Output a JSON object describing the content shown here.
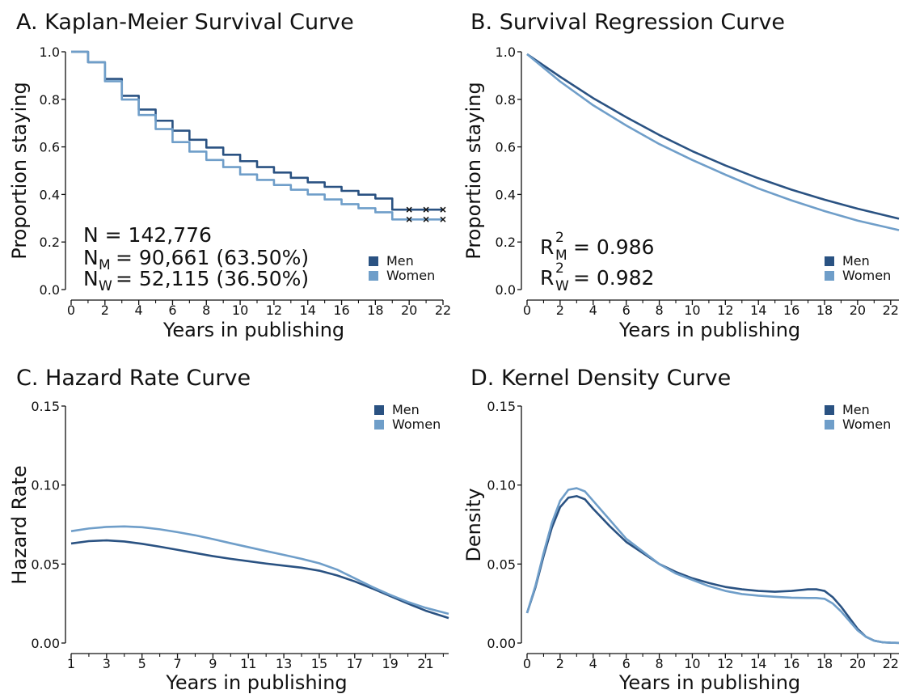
{
  "colors": {
    "men": "#2a5282",
    "women": "#6f9ec9",
    "axis": "#111111",
    "censor": "#111111"
  },
  "chart_data": [
    {
      "id": "A",
      "type": "line",
      "title": "A. Kaplan-Meier Survival Curve",
      "xlabel": "Years in publishing",
      "ylabel": "Proportion staying",
      "xlim": [
        0,
        22
      ],
      "ylim": [
        0,
        1
      ],
      "x_ticks": [
        "0",
        "2",
        "4",
        "6",
        "8",
        "10",
        "12",
        "14",
        "16",
        "18",
        "20",
        "22"
      ],
      "x_minor_ticks": [
        1,
        3,
        5,
        7,
        9,
        11,
        13,
        15,
        17,
        19,
        21
      ],
      "y_ticks": [
        "0.0",
        "0.2",
        "0.4",
        "0.6",
        "0.8",
        "1.0"
      ],
      "step": true,
      "legend": {
        "position": "bottom-right",
        "entries": [
          "Men",
          "Women"
        ]
      },
      "annotations": {
        "n_total": "N = 142,776",
        "n_men_sub": "M",
        "n_men": "= 90,661 (63.50%)",
        "n_women_sub": "W",
        "n_women": "= 52,115 (36.50%)"
      },
      "series": [
        {
          "name": "Men",
          "color_key": "men",
          "x": [
            0,
            1,
            2,
            3,
            4,
            5,
            6,
            7,
            8,
            9,
            10,
            11,
            12,
            13,
            14,
            15,
            16,
            17,
            18,
            19,
            20,
            21,
            22
          ],
          "values": [
            1.0,
            0.956,
            0.886,
            0.815,
            0.757,
            0.71,
            0.668,
            0.63,
            0.597,
            0.567,
            0.54,
            0.515,
            0.492,
            0.47,
            0.451,
            0.432,
            0.415,
            0.399,
            0.383,
            0.336,
            0.336,
            0.336,
            0.336
          ],
          "censored_x": [
            20,
            21,
            22
          ],
          "censored_y": 0.336
        },
        {
          "name": "Women",
          "color_key": "women",
          "x": [
            0,
            1,
            2,
            3,
            4,
            5,
            6,
            7,
            8,
            9,
            10,
            11,
            12,
            13,
            14,
            15,
            16,
            17,
            18,
            19,
            20,
            21,
            22
          ],
          "values": [
            1.0,
            0.956,
            0.876,
            0.799,
            0.734,
            0.675,
            0.62,
            0.58,
            0.545,
            0.515,
            0.484,
            0.461,
            0.44,
            0.42,
            0.4,
            0.379,
            0.359,
            0.342,
            0.325,
            0.295,
            0.295,
            0.295,
            0.295
          ],
          "censored_x": [
            20,
            21,
            22
          ],
          "censored_y": 0.295
        }
      ]
    },
    {
      "id": "B",
      "type": "line",
      "title": "B. Survival Regression Curve",
      "xlabel": "Years in publishing",
      "ylabel": "Proportion staying",
      "xlim": [
        0,
        22.5
      ],
      "ylim": [
        0,
        1
      ],
      "x_ticks": [
        "0",
        "2",
        "4",
        "6",
        "8",
        "10",
        "12",
        "14",
        "16",
        "18",
        "20",
        "22"
      ],
      "x_minor_ticks": [
        1,
        3,
        5,
        7,
        9,
        11,
        13,
        15,
        17,
        19,
        21
      ],
      "y_ticks": [
        "0.0",
        "0.2",
        "0.4",
        "0.6",
        "0.8",
        "1.0"
      ],
      "legend": {
        "position": "bottom-right",
        "entries": [
          "Men",
          "Women"
        ]
      },
      "annotations": {
        "r_men_sup": "2",
        "r_men_sub": "M",
        "r_men": "= 0.986",
        "r_women_sup": "2",
        "r_women_sub": "W",
        "r_women": "= 0.982"
      },
      "series": [
        {
          "name": "Men",
          "color_key": "men",
          "x": [
            0,
            2,
            4,
            6,
            8,
            10,
            12,
            14,
            16,
            18,
            20,
            22.5
          ],
          "values": [
            0.99,
            0.895,
            0.805,
            0.725,
            0.65,
            0.582,
            0.522,
            0.468,
            0.42,
            0.378,
            0.34,
            0.298
          ]
        },
        {
          "name": "Women",
          "color_key": "women",
          "x": [
            0,
            2,
            4,
            6,
            8,
            10,
            12,
            14,
            16,
            18,
            20,
            22.5
          ],
          "values": [
            0.99,
            0.875,
            0.775,
            0.69,
            0.612,
            0.545,
            0.483,
            0.425,
            0.375,
            0.33,
            0.29,
            0.25
          ]
        }
      ]
    },
    {
      "id": "C",
      "type": "line",
      "title": "C. Hazard Rate Curve",
      "xlabel": "Years in publishing",
      "ylabel": "Hazard Rate",
      "xlim": [
        1,
        22.3
      ],
      "ylim": [
        0,
        0.15
      ],
      "x_ticks": [
        "1",
        "3",
        "5",
        "7",
        "9",
        "11",
        "13",
        "15",
        "17",
        "19",
        "21"
      ],
      "x_minor_ticks": [
        2,
        4,
        6,
        8,
        10,
        12,
        14,
        16,
        18,
        20,
        22
      ],
      "y_ticks": [
        "0.00",
        "0.05",
        "0.10",
        "0.15"
      ],
      "legend": {
        "position": "top-right",
        "entries": [
          "Men",
          "Women"
        ]
      },
      "series": [
        {
          "name": "Men",
          "color_key": "men",
          "x": [
            1,
            2,
            3,
            4,
            5,
            6,
            7,
            8,
            9,
            10,
            11,
            12,
            13,
            14,
            15,
            16,
            17,
            18,
            19,
            20,
            21,
            22.3
          ],
          "values": [
            0.063,
            0.0645,
            0.065,
            0.0643,
            0.0628,
            0.061,
            0.059,
            0.057,
            0.055,
            0.0533,
            0.0518,
            0.0503,
            0.049,
            0.0477,
            0.0458,
            0.0428,
            0.039,
            0.0345,
            0.0297,
            0.025,
            0.0205,
            0.0158
          ]
        },
        {
          "name": "Women",
          "color_key": "women",
          "x": [
            1,
            2,
            3,
            4,
            5,
            6,
            7,
            8,
            9,
            10,
            11,
            12,
            13,
            14,
            15,
            16,
            17,
            18,
            19,
            20,
            21,
            22.3
          ],
          "values": [
            0.0708,
            0.0725,
            0.0735,
            0.0738,
            0.0733,
            0.072,
            0.0702,
            0.0682,
            0.0658,
            0.0632,
            0.0607,
            0.0582,
            0.0558,
            0.0533,
            0.0505,
            0.0465,
            0.041,
            0.0355,
            0.0305,
            0.026,
            0.0223,
            0.0185
          ]
        }
      ]
    },
    {
      "id": "D",
      "type": "line",
      "title": "D. Kernel Density Curve",
      "xlabel": "Years in publishing",
      "ylabel": "Density",
      "xlim": [
        0,
        22.5
      ],
      "ylim": [
        0,
        0.15
      ],
      "x_ticks": [
        "0",
        "2",
        "4",
        "6",
        "8",
        "10",
        "12",
        "14",
        "16",
        "18",
        "20",
        "22"
      ],
      "x_minor_ticks": [
        1,
        3,
        5,
        7,
        9,
        11,
        13,
        15,
        17,
        19,
        21
      ],
      "y_ticks": [
        "0.00",
        "0.05",
        "0.10",
        "0.15"
      ],
      "legend": {
        "position": "top-right",
        "entries": [
          "Men",
          "Women"
        ]
      },
      "series": [
        {
          "name": "Men",
          "color_key": "men",
          "x": [
            0,
            0.5,
            1,
            1.5,
            2,
            2.5,
            3,
            3.5,
            4,
            5,
            6,
            7,
            8,
            9,
            10,
            11,
            12,
            13,
            14,
            15,
            16,
            17,
            17.5,
            18,
            18.5,
            19,
            19.5,
            20,
            20.5,
            21,
            21.5,
            22,
            22.5
          ],
          "values": [
            0.019,
            0.035,
            0.055,
            0.073,
            0.086,
            0.092,
            0.093,
            0.091,
            0.085,
            0.074,
            0.064,
            0.057,
            0.05,
            0.045,
            0.041,
            0.038,
            0.0355,
            0.034,
            0.033,
            0.0325,
            0.033,
            0.034,
            0.034,
            0.033,
            0.029,
            0.023,
            0.016,
            0.009,
            0.004,
            0.0015,
            0.0005,
            0.0002,
            0.0001
          ]
        },
        {
          "name": "Women",
          "color_key": "women",
          "x": [
            0,
            0.5,
            1,
            1.5,
            2,
            2.5,
            3,
            3.5,
            4,
            5,
            6,
            7,
            8,
            9,
            10,
            11,
            12,
            13,
            14,
            15,
            16,
            17,
            17.5,
            18,
            18.5,
            19,
            19.5,
            20,
            20.5,
            21,
            21.5,
            22,
            22.5
          ],
          "values": [
            0.019,
            0.036,
            0.057,
            0.076,
            0.09,
            0.097,
            0.098,
            0.096,
            0.09,
            0.078,
            0.066,
            0.058,
            0.05,
            0.044,
            0.04,
            0.036,
            0.033,
            0.031,
            0.03,
            0.0293,
            0.0287,
            0.0285,
            0.0285,
            0.028,
            0.025,
            0.02,
            0.014,
            0.008,
            0.004,
            0.0015,
            0.0005,
            0.0002,
            0.0001
          ]
        }
      ]
    }
  ]
}
